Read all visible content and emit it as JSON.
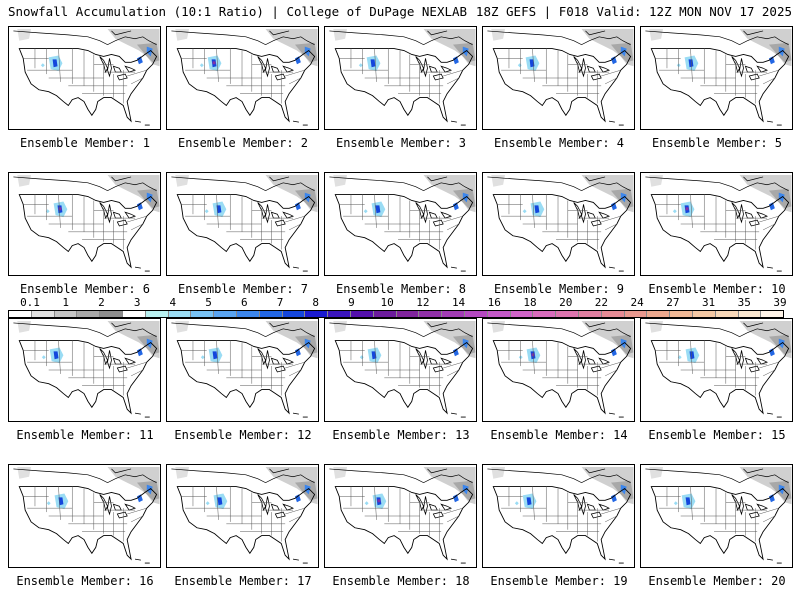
{
  "header": {
    "left": "Snowfall Accumulation (10:1 Ratio) | College of DuPage NEXLAB",
    "right": "18Z GEFS | F018 Valid: 12Z MON NOV 17 2025"
  },
  "panels": [
    {
      "label": "Ensemble Member: 1"
    },
    {
      "label": "Ensemble Member: 2"
    },
    {
      "label": "Ensemble Member: 3"
    },
    {
      "label": "Ensemble Member: 4"
    },
    {
      "label": "Ensemble Member: 5"
    },
    {
      "label": "Ensemble Member: 6"
    },
    {
      "label": "Ensemble Member: 7"
    },
    {
      "label": "Ensemble Member: 8"
    },
    {
      "label": "Ensemble Member: 9"
    },
    {
      "label": "Ensemble Member: 10"
    },
    {
      "label": "Ensemble Member: 11"
    },
    {
      "label": "Ensemble Member: 12"
    },
    {
      "label": "Ensemble Member: 13"
    },
    {
      "label": "Ensemble Member: 14"
    },
    {
      "label": "Ensemble Member: 15"
    },
    {
      "label": "Ensemble Member: 16"
    },
    {
      "label": "Ensemble Member: 17"
    },
    {
      "label": "Ensemble Member: 18"
    },
    {
      "label": "Ensemble Member: 19"
    },
    {
      "label": "Ensemble Member: 20"
    }
  ],
  "colorbar": {
    "ticks": [
      "0.1",
      "1",
      "2",
      "3",
      "4",
      "5",
      "6",
      "7",
      "8",
      "9",
      "10",
      "12",
      "14",
      "16",
      "18",
      "20",
      "22",
      "24",
      "27",
      "31",
      "35",
      "39"
    ],
    "colors": [
      "#ffffff",
      "#e0e0e0",
      "#c4c4c4",
      "#a8a8a8",
      "#8c8c8c",
      "#ffffff",
      "#b8f0f0",
      "#9adcf4",
      "#78c2f4",
      "#5aa4f0",
      "#3c86ec",
      "#2266e4",
      "#1446dc",
      "#1a1ad0",
      "#3a14bc",
      "#5410ac",
      "#6c1c9c",
      "#80249c",
      "#9030a8",
      "#a23cb4",
      "#b448c0",
      "#c458c8",
      "#d064c8",
      "#d86cbc",
      "#dc74ae",
      "#e07ea0",
      "#e48a94",
      "#e8988e",
      "#eca88e",
      "#f0b896",
      "#f4c8a4",
      "#f8d8b8",
      "#fce8d0",
      "#fff4e8"
    ]
  }
}
